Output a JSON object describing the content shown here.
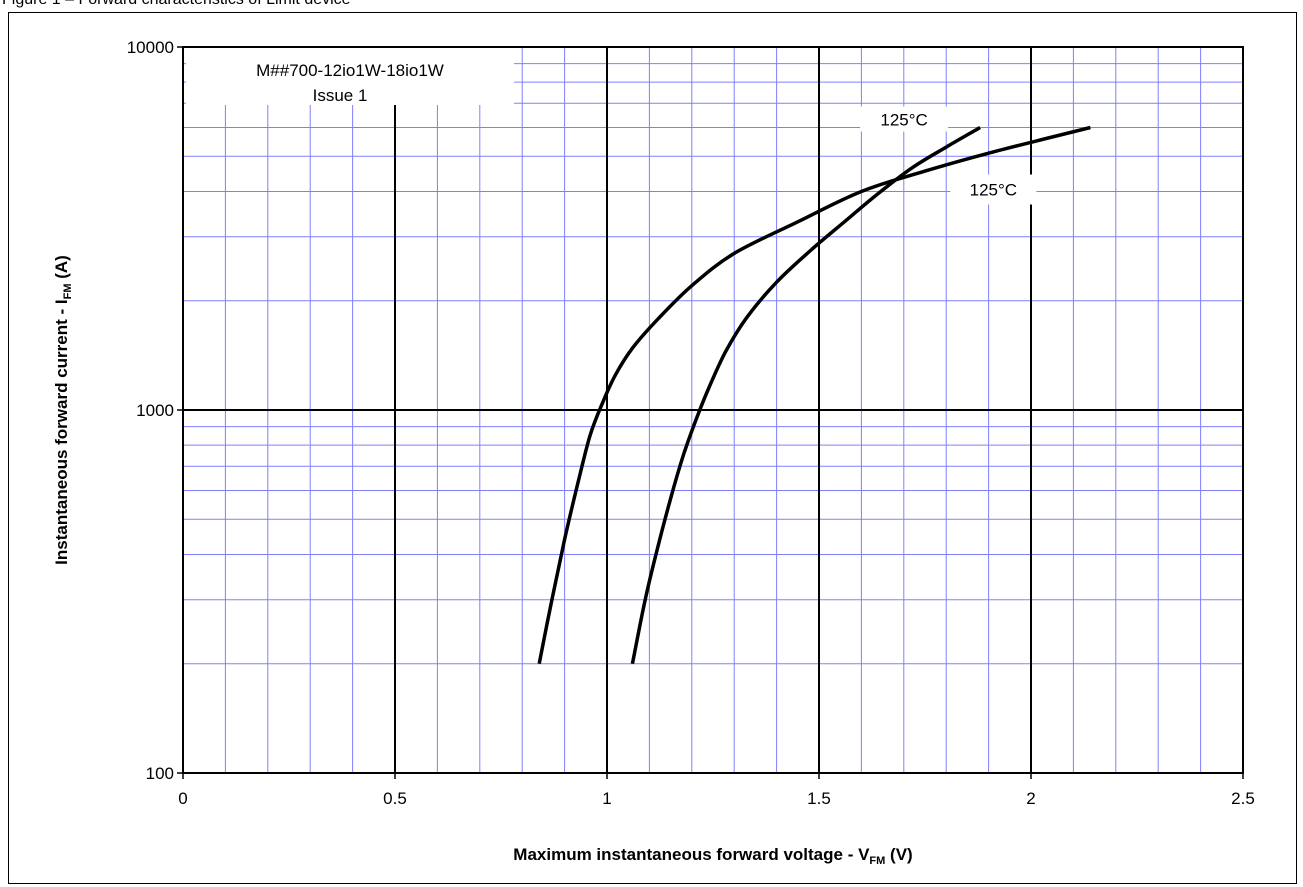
{
  "figure_caption": "Figure 1 – Forward characteristics of Limit device",
  "annotation": {
    "line1": "M##700-12io1W-18io1W",
    "line2": "Issue 1"
  },
  "chart_data": {
    "type": "line",
    "title": "",
    "xlabel": {
      "main": "Maximum instantaneous forward voltage - V",
      "sub": "FM",
      "suffix": " (V)"
    },
    "ylabel": {
      "main": "Instantaneous forward current - I",
      "sub": "FM",
      "suffix": " (A)"
    },
    "xlim": [
      0,
      2.5
    ],
    "ylim": [
      100,
      10000
    ],
    "yscale": "log",
    "grid": true,
    "x_ticks": [
      {
        "value": 0,
        "label": "0"
      },
      {
        "value": 0.5,
        "label": "0.5"
      },
      {
        "value": 1,
        "label": "1"
      },
      {
        "value": 1.5,
        "label": "1.5"
      },
      {
        "value": 2,
        "label": "2"
      },
      {
        "value": 2.5,
        "label": "2.5"
      }
    ],
    "y_ticks": [
      {
        "value": 100,
        "label": "100"
      },
      {
        "value": 1000,
        "label": "1000"
      },
      {
        "value": 10000,
        "label": "10000"
      }
    ],
    "colors": {
      "minor_grid": "#8080ff",
      "major_grid": "#000000",
      "series": "#000000"
    },
    "series": [
      {
        "name": "125°C",
        "x": [
          0.84,
          0.87,
          0.9,
          0.93,
          0.96,
          0.99,
          1.02,
          1.06,
          1.12,
          1.2,
          1.3,
          1.45,
          1.6,
          1.75,
          1.9,
          2.05,
          2.14
        ],
        "y": [
          200,
          300,
          440,
          620,
          850,
          1050,
          1250,
          1480,
          1780,
          2200,
          2700,
          3300,
          4000,
          4550,
          5100,
          5650,
          6000
        ]
      },
      {
        "name": "125°C",
        "x": [
          1.06,
          1.09,
          1.12,
          1.15,
          1.18,
          1.21,
          1.24,
          1.28,
          1.33,
          1.4,
          1.48,
          1.56,
          1.64,
          1.72,
          1.8,
          1.88
        ],
        "y": [
          200,
          300,
          420,
          570,
          750,
          940,
          1150,
          1450,
          1800,
          2250,
          2750,
          3300,
          3950,
          4650,
          5300,
          6000
        ]
      }
    ]
  }
}
